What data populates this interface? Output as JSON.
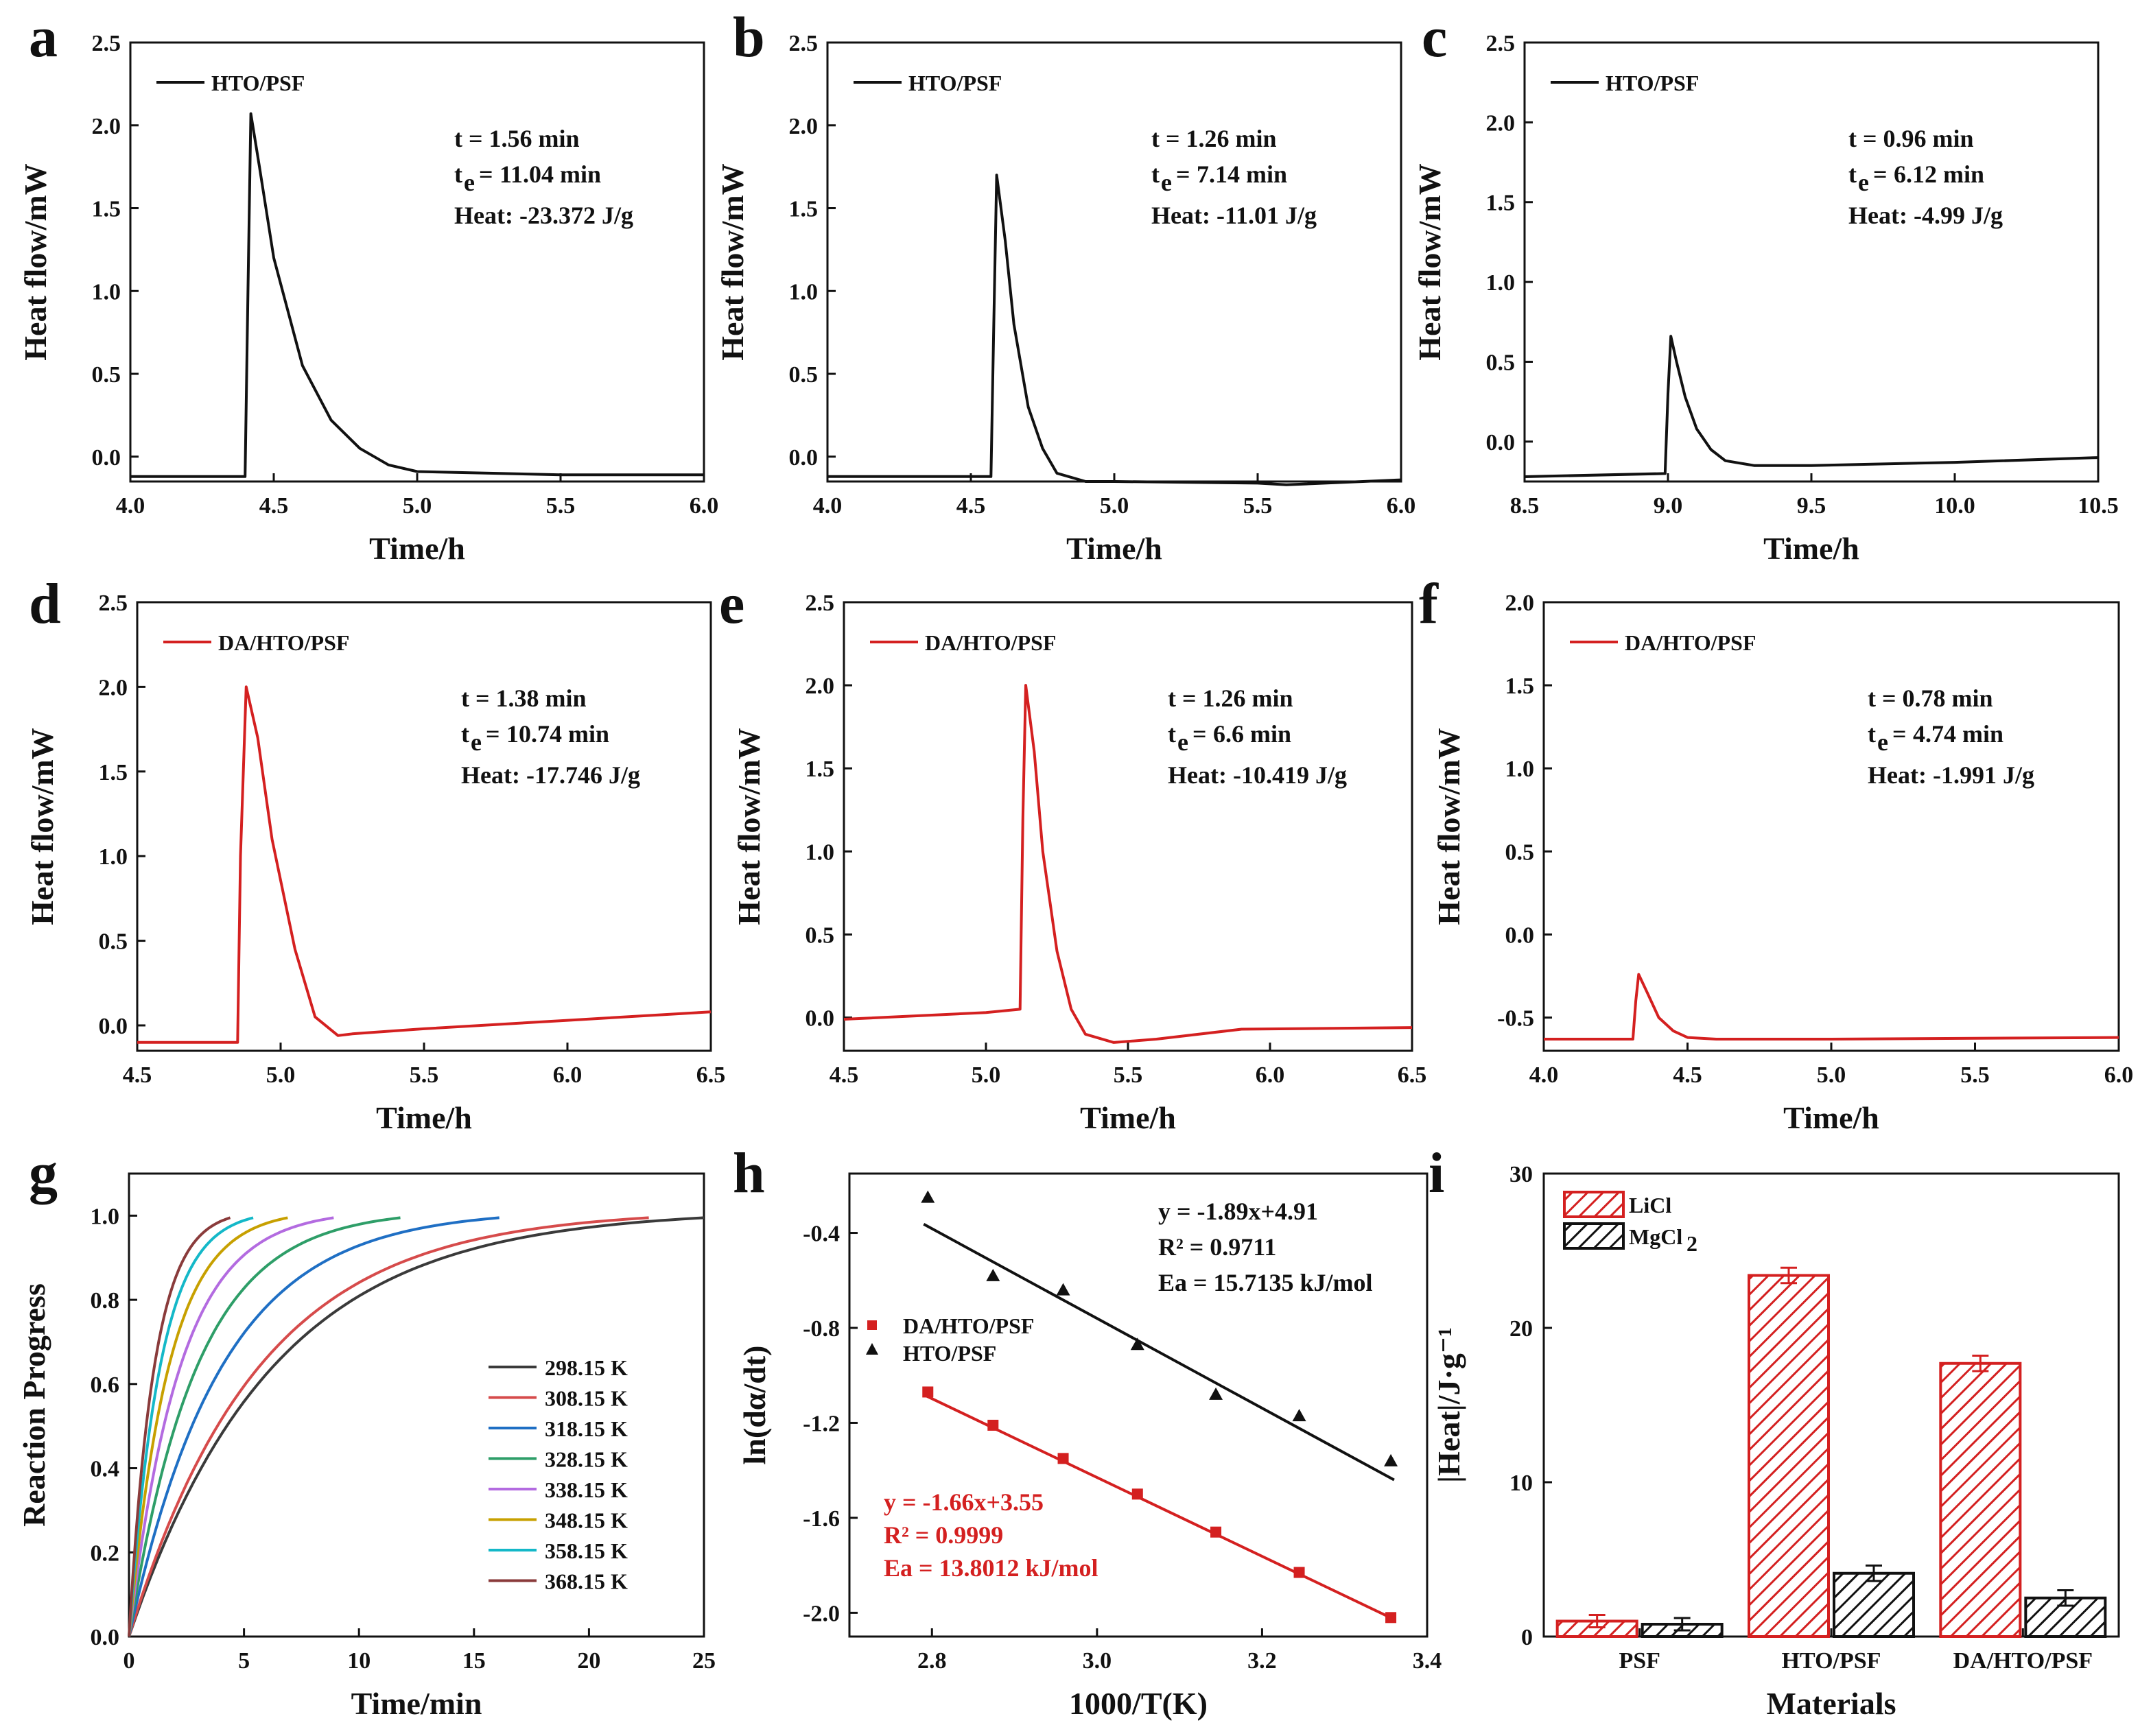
{
  "colors": {
    "black": "#111111",
    "red": "#d42020",
    "axis": "#111111"
  },
  "chart_data": [
    {
      "id": "a",
      "type": "line",
      "panel_label": "a",
      "xlabel": "Time/h",
      "ylabel": "Heat flow/mW",
      "xlim": [
        4.0,
        6.0
      ],
      "ylim": [
        -0.15,
        2.5
      ],
      "xticks": [
        "4.0",
        "4.5",
        "5.0",
        "5.5",
        "6.0"
      ],
      "yticks": [
        "0.0",
        "0.5",
        "1.0",
        "1.5",
        "2.0",
        "2.5"
      ],
      "legend": "HTO/PSF",
      "color": "black",
      "annotations": [
        "t = 1.56 min",
        "11.04 min",
        "Heat: -23.372 J/g"
      ],
      "series": [
        {
          "name": "HTO/PSF",
          "x": [
            4.0,
            4.4,
            4.41,
            4.42,
            4.45,
            4.5,
            4.6,
            4.7,
            4.8,
            4.9,
            5.0,
            5.5,
            6.0
          ],
          "y": [
            -0.12,
            -0.12,
            1.0,
            2.07,
            1.75,
            1.2,
            0.55,
            0.22,
            0.05,
            -0.05,
            -0.09,
            -0.11,
            -0.11
          ]
        }
      ]
    },
    {
      "id": "b",
      "type": "line",
      "panel_label": "b",
      "xlabel": "Time/h",
      "ylabel": "Heat flow/mW",
      "xlim": [
        4.0,
        6.0
      ],
      "ylim": [
        -0.15,
        2.5
      ],
      "xticks": [
        "4.0",
        "4.5",
        "5.0",
        "5.5",
        "6.0"
      ],
      "yticks": [
        "0.0",
        "0.5",
        "1.0",
        "1.5",
        "2.0",
        "2.5"
      ],
      "legend": "HTO/PSF",
      "color": "black",
      "annotations": [
        "t = 1.26 min",
        "7.14 min",
        "Heat: -11.01 J/g"
      ],
      "series": [
        {
          "name": "HTO/PSF",
          "x": [
            4.0,
            4.57,
            4.58,
            4.59,
            4.62,
            4.65,
            4.7,
            4.75,
            4.8,
            4.9,
            5.0,
            5.5,
            5.6,
            6.0
          ],
          "y": [
            -0.12,
            -0.12,
            0.8,
            1.7,
            1.3,
            0.8,
            0.3,
            0.05,
            -0.1,
            -0.15,
            -0.15,
            -0.16,
            -0.17,
            -0.14
          ]
        }
      ]
    },
    {
      "id": "c",
      "type": "line",
      "panel_label": "c",
      "xlabel": "Time/h",
      "ylabel": "Heat flow/mW",
      "xlim": [
        8.5,
        10.5
      ],
      "ylim": [
        -0.25,
        2.5
      ],
      "xticks": [
        "8.5",
        "9.0",
        "9.5",
        "10.0",
        "10.5"
      ],
      "yticks": [
        "0.0",
        "0.5",
        "1.0",
        "1.5",
        "2.0",
        "2.5"
      ],
      "legend": "HTO/PSF",
      "color": "black",
      "annotations": [
        "t = 0.96 min",
        "6.12 min",
        "Heat: -4.99 J/g"
      ],
      "series": [
        {
          "name": "HTO/PSF",
          "x": [
            8.5,
            8.99,
            9.0,
            9.01,
            9.03,
            9.06,
            9.1,
            9.15,
            9.2,
            9.3,
            9.5,
            10.0,
            10.5
          ],
          "y": [
            -0.22,
            -0.2,
            0.3,
            0.66,
            0.5,
            0.28,
            0.08,
            -0.05,
            -0.12,
            -0.15,
            -0.15,
            -0.13,
            -0.1
          ]
        }
      ]
    },
    {
      "id": "d",
      "type": "line",
      "panel_label": "d",
      "xlabel": "Time/h",
      "ylabel": "Heat flow/mW",
      "xlim": [
        4.5,
        6.5
      ],
      "ylim": [
        -0.15,
        2.5
      ],
      "xticks": [
        "4.5",
        "5.0",
        "5.5",
        "6.0",
        "6.5"
      ],
      "yticks": [
        "0.0",
        "0.5",
        "1.0",
        "1.5",
        "2.0",
        "2.5"
      ],
      "legend": "DA/HTO/PSF",
      "color": "red",
      "annotations": [
        "t = 1.38 min",
        "10.74 min",
        "Heat: -17.746 J/g"
      ],
      "series": [
        {
          "name": "DA/HTO/PSF",
          "x": [
            4.5,
            4.85,
            4.86,
            4.88,
            4.92,
            4.97,
            5.05,
            5.12,
            5.2,
            5.25,
            5.5,
            6.0,
            6.5
          ],
          "y": [
            -0.1,
            -0.1,
            1.0,
            2.0,
            1.7,
            1.1,
            0.45,
            0.05,
            -0.06,
            -0.05,
            -0.02,
            0.03,
            0.08
          ]
        }
      ]
    },
    {
      "id": "e",
      "type": "line",
      "panel_label": "e",
      "xlabel": "Time/h",
      "ylabel": "Heat flow/mW",
      "xlim": [
        4.5,
        6.5
      ],
      "ylim": [
        -0.2,
        2.5
      ],
      "xticks": [
        "4.5",
        "5.0",
        "5.5",
        "6.0",
        "6.5"
      ],
      "yticks": [
        "0.0",
        "0.5",
        "1.0",
        "1.5",
        "2.0",
        "2.5"
      ],
      "legend": "DA/HTO/PSF",
      "color": "red",
      "annotations": [
        "t = 1.26 min",
        "6.6 min",
        "Heat: -10.419 J/g"
      ],
      "series": [
        {
          "name": "DA/HTO/PSF",
          "x": [
            4.5,
            5.0,
            5.12,
            5.13,
            5.14,
            5.17,
            5.2,
            5.25,
            5.3,
            5.35,
            5.45,
            5.6,
            5.9,
            6.5
          ],
          "y": [
            -0.01,
            0.03,
            0.05,
            1.2,
            2.0,
            1.6,
            1.0,
            0.4,
            0.05,
            -0.1,
            -0.15,
            -0.13,
            -0.07,
            -0.06
          ]
        }
      ]
    },
    {
      "id": "f",
      "type": "line",
      "panel_label": "f",
      "xlabel": "Time/h",
      "ylabel": "Heat flow/mW",
      "xlim": [
        4.0,
        6.0
      ],
      "ylim": [
        -0.7,
        2.0
      ],
      "xticks": [
        "4.0",
        "4.5",
        "5.0",
        "5.5",
        "6.0"
      ],
      "yticks": [
        "-0.5",
        "0.0",
        "0.5",
        "1.0",
        "1.5",
        "2.0"
      ],
      "legend": "DA/HTO/PSF",
      "color": "red",
      "annotations": [
        "t = 0.78 min",
        "4.74 min",
        "Heat: -1.991 J/g"
      ],
      "series": [
        {
          "name": "DA/HTO/PSF",
          "x": [
            4.0,
            4.31,
            4.32,
            4.33,
            4.36,
            4.4,
            4.45,
            4.5,
            4.6,
            5.0,
            6.0
          ],
          "y": [
            -0.63,
            -0.63,
            -0.4,
            -0.24,
            -0.35,
            -0.5,
            -0.58,
            -0.62,
            -0.63,
            -0.63,
            -0.62
          ]
        }
      ]
    },
    {
      "id": "g",
      "type": "line",
      "panel_label": "g",
      "xlabel": "Time/min",
      "ylabel": "Reaction Progress",
      "xlim": [
        0,
        25
      ],
      "ylim": [
        0,
        1.1
      ],
      "xticks": [
        "0",
        "5",
        "10",
        "15",
        "20",
        "25"
      ],
      "yticks": [
        "0.0",
        "0.2",
        "0.4",
        "0.6",
        "0.8",
        "1.0"
      ],
      "series": [
        {
          "name": "298.15 K",
          "color": "#3a3a3a",
          "tmax": 25.0
        },
        {
          "name": "308.15 K",
          "color": "#d64b4b",
          "tmax": 22.6
        },
        {
          "name": "318.15 K",
          "color": "#1f6fc4",
          "tmax": 16.1
        },
        {
          "name": "328.15 K",
          "color": "#2e9e68",
          "tmax": 11.8
        },
        {
          "name": "338.15 K",
          "color": "#b36be0",
          "tmax": 8.9
        },
        {
          "name": "348.15 K",
          "color": "#c7a000",
          "tmax": 6.9
        },
        {
          "name": "358.15 K",
          "color": "#14b8c8",
          "tmax": 5.4
        },
        {
          "name": "368.15 K",
          "color": "#8a3b3b",
          "tmax": 4.4
        }
      ]
    },
    {
      "id": "h",
      "type": "scatter",
      "panel_label": "h",
      "xlabel": "1000/T(K)",
      "ylabel": "ln(dα/dt)",
      "xlim": [
        2.7,
        3.4
      ],
      "ylim": [
        -2.1,
        -0.15
      ],
      "xticks": [
        "2.8",
        "3.0",
        "3.2",
        "3.4"
      ],
      "yticks": [
        "-0.4",
        "-0.8",
        "-1.2",
        "-1.6",
        "-2.0"
      ],
      "legend": [
        "DA/HTO/PSF",
        "HTO/PSF"
      ],
      "fit_black": [
        "y = -1.89x+4.91",
        "R² = 0.9711",
        "Ea = 15.7135 kJ/mol"
      ],
      "fit_red": [
        "y = -1.66x+3.55",
        "R² = 0.9999",
        "Ea = 13.8012 kJ/mol"
      ],
      "series": [
        {
          "name": "DA/HTO/PSF",
          "x": [
            2.795,
            2.874,
            2.959,
            3.049,
            3.144,
            3.245,
            3.356
          ],
          "y": [
            -1.07,
            -1.21,
            -1.35,
            -1.5,
            -1.66,
            -1.83,
            -2.02
          ],
          "fit": [
            -1.66,
            3.55
          ]
        },
        {
          "name": "HTO/PSF",
          "x": [
            2.795,
            2.874,
            2.959,
            3.049,
            3.144,
            3.245,
            3.356
          ],
          "y": [
            -0.25,
            -0.58,
            -0.64,
            -0.87,
            -1.08,
            -1.17,
            -1.36
          ],
          "fit": [
            -1.89,
            4.91
          ]
        }
      ]
    },
    {
      "id": "i",
      "type": "bar",
      "panel_label": "i",
      "xlabel": "Materials",
      "ylabel": "|Heat|/J·g⁻¹",
      "ylim": [
        0,
        30
      ],
      "yticks": [
        "0",
        "10",
        "20",
        "30"
      ],
      "categories": [
        "PSF",
        "HTO/PSF",
        "DA/HTO/PSF"
      ],
      "series": [
        {
          "name": "LiCl",
          "values": [
            1.0,
            23.4,
            17.7
          ],
          "errors": [
            0.4,
            0.5,
            0.5
          ]
        },
        {
          "name": "MgCl",
          "name_sub": "2",
          "values": [
            0.8,
            4.1,
            2.5
          ],
          "errors": [
            0.4,
            0.5,
            0.5
          ]
        }
      ]
    }
  ]
}
